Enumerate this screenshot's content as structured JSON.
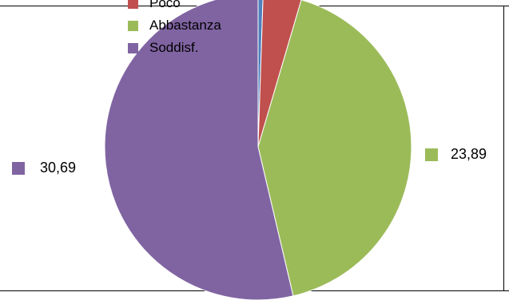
{
  "chart_data": {
    "type": "pie",
    "title": "",
    "slices": [
      {
        "label": "",
        "value": 0.3,
        "color": "#4f81bd"
      },
      {
        "label": "Poco",
        "value": 2.3,
        "color": "#c0504d"
      },
      {
        "label": "Abbastanza",
        "value": 23.89,
        "color": "#9bbb59"
      },
      {
        "label": "Soddisf.",
        "value": 30.69,
        "color": "#8064a2"
      }
    ],
    "data_labels": [
      {
        "text": "23,89",
        "slice": 2
      },
      {
        "text": "30,69",
        "slice": 3
      }
    ],
    "legend": {
      "placement": "top",
      "entries": [
        {
          "label": "Poco",
          "color": "#c0504d"
        },
        {
          "label": "Abbastanza",
          "color": "#9bbb59"
        },
        {
          "label": "Soddisf.",
          "color": "#8064a2"
        }
      ]
    }
  }
}
